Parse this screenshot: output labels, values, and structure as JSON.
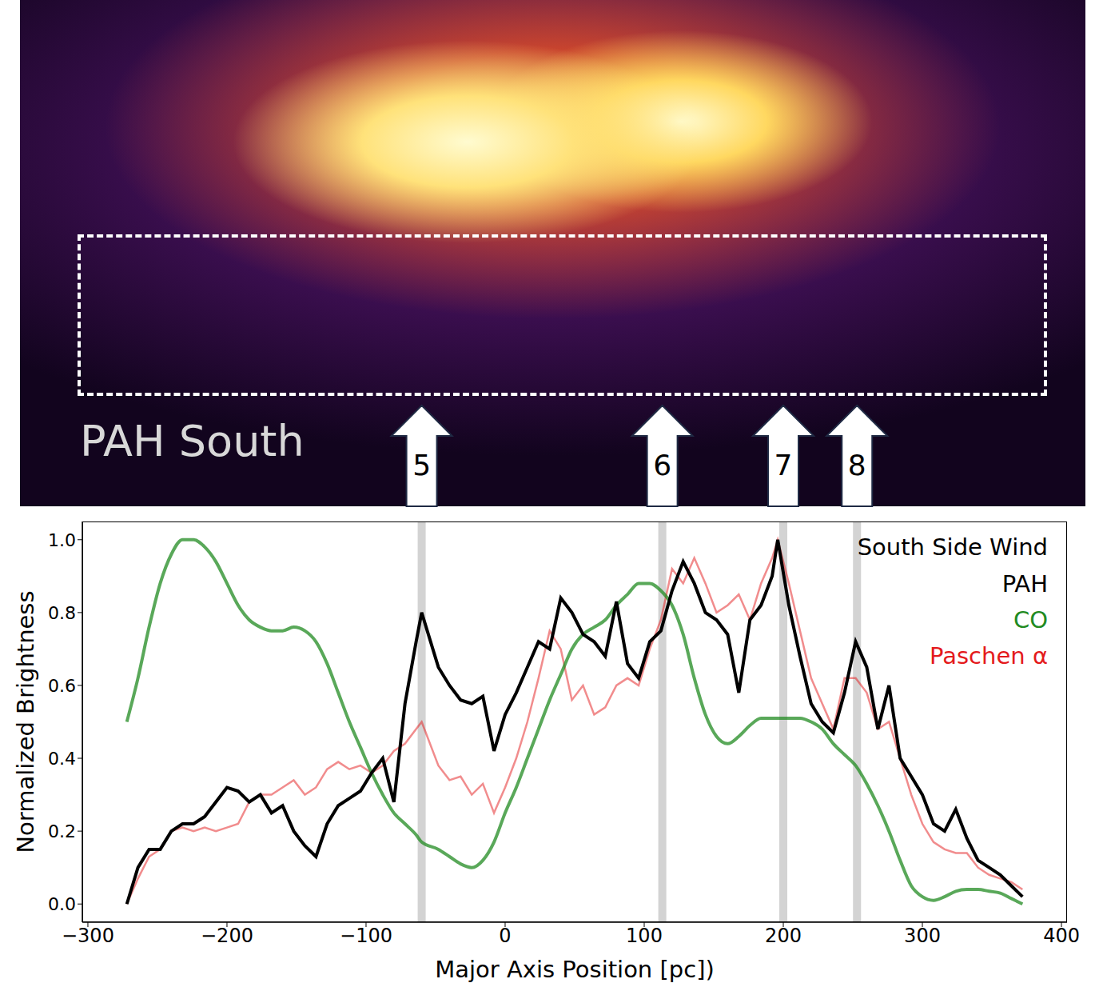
{
  "image": {
    "label": "PAH South"
  },
  "chart_data": {
    "type": "line",
    "legend_title": "South Side Wind",
    "x_label": "Major Axis Position [pc])",
    "y_label": "Normalized Brightness",
    "legend": "upper right",
    "grid": false,
    "markers": [
      {
        "label": "5",
        "x": -60
      },
      {
        "label": "6",
        "x": 113
      },
      {
        "label": "7",
        "x": 200
      },
      {
        "label": "8",
        "x": 253
      }
    ],
    "xlim": [
      -304,
      404
    ],
    "ylim": [
      -0.05,
      1.05
    ],
    "xticks": [
      {
        "value": -300,
        "label": "−300"
      },
      {
        "value": -200,
        "label": "−200"
      },
      {
        "value": -100,
        "label": "−100"
      },
      0,
      100,
      200,
      300,
      400
    ],
    "yticks": [
      {
        "value": 0,
        "label": "0.0"
      },
      0.2,
      0.4,
      0.6,
      0.8,
      {
        "value": 1,
        "label": "1.0"
      }
    ],
    "x": [
      -272,
      -264,
      -256,
      -248,
      -240,
      -232,
      -224,
      -216,
      -208,
      -200,
      -192,
      -184,
      -176,
      -168,
      -160,
      -152,
      -144,
      -136,
      -128,
      -120,
      -112,
      -104,
      -96,
      -88,
      -80,
      -72,
      -64,
      -60,
      -48,
      -40,
      -32,
      -24,
      -16,
      -8,
      0,
      8,
      16,
      24,
      32,
      40,
      48,
      56,
      64,
      72,
      80,
      88,
      96,
      104,
      112,
      120,
      128,
      136,
      144,
      152,
      160,
      168,
      176,
      184,
      192,
      196,
      204,
      212,
      220,
      228,
      236,
      244,
      252,
      260,
      268,
      276,
      284,
      292,
      300,
      308,
      316,
      324,
      332,
      340,
      348,
      356,
      364,
      372
    ],
    "series": [
      {
        "name": "PAH",
        "color": "#000000",
        "values": [
          0.0,
          0.1,
          0.15,
          0.15,
          0.2,
          0.22,
          0.22,
          0.24,
          0.28,
          0.32,
          0.31,
          0.28,
          0.3,
          0.25,
          0.27,
          0.2,
          0.16,
          0.13,
          0.22,
          0.27,
          0.29,
          0.31,
          0.36,
          0.4,
          0.28,
          0.55,
          0.72,
          0.8,
          0.65,
          0.6,
          0.56,
          0.55,
          0.57,
          0.42,
          0.52,
          0.58,
          0.65,
          0.72,
          0.7,
          0.84,
          0.8,
          0.74,
          0.72,
          0.68,
          0.83,
          0.66,
          0.62,
          0.72,
          0.75,
          0.86,
          0.94,
          0.88,
          0.8,
          0.78,
          0.74,
          0.58,
          0.78,
          0.82,
          0.9,
          1.0,
          0.82,
          0.68,
          0.55,
          0.5,
          0.47,
          0.58,
          0.72,
          0.65,
          0.48,
          0.6,
          0.4,
          0.35,
          0.3,
          0.22,
          0.2,
          0.26,
          0.18,
          0.12,
          0.1,
          0.08,
          0.05,
          0.02
        ]
      },
      {
        "name": "CO",
        "color": "#228b22",
        "values": [
          0.5,
          0.62,
          0.76,
          0.88,
          0.96,
          1.0,
          1.0,
          0.98,
          0.94,
          0.88,
          0.82,
          0.78,
          0.76,
          0.75,
          0.75,
          0.76,
          0.75,
          0.72,
          0.66,
          0.58,
          0.5,
          0.43,
          0.36,
          0.3,
          0.25,
          0.22,
          0.19,
          0.17,
          0.15,
          0.13,
          0.11,
          0.1,
          0.12,
          0.17,
          0.25,
          0.32,
          0.4,
          0.48,
          0.56,
          0.63,
          0.7,
          0.74,
          0.76,
          0.78,
          0.82,
          0.85,
          0.88,
          0.88,
          0.86,
          0.82,
          0.74,
          0.62,
          0.52,
          0.46,
          0.44,
          0.46,
          0.49,
          0.51,
          0.51,
          0.51,
          0.51,
          0.51,
          0.5,
          0.48,
          0.44,
          0.41,
          0.38,
          0.33,
          0.27,
          0.2,
          0.12,
          0.05,
          0.02,
          0.01,
          0.02,
          0.035,
          0.04,
          0.04,
          0.035,
          0.03,
          0.015,
          0.0
        ]
      },
      {
        "name": "Paschen α",
        "color": "#e41a1c",
        "values": [
          0.0,
          0.07,
          0.13,
          0.15,
          0.2,
          0.21,
          0.2,
          0.21,
          0.2,
          0.21,
          0.22,
          0.28,
          0.3,
          0.3,
          0.32,
          0.34,
          0.3,
          0.32,
          0.37,
          0.39,
          0.37,
          0.38,
          0.36,
          0.38,
          0.42,
          0.44,
          0.48,
          0.5,
          0.38,
          0.34,
          0.35,
          0.3,
          0.33,
          0.25,
          0.32,
          0.4,
          0.5,
          0.62,
          0.75,
          0.7,
          0.56,
          0.6,
          0.52,
          0.54,
          0.6,
          0.62,
          0.6,
          0.7,
          0.78,
          0.92,
          0.88,
          0.95,
          0.88,
          0.8,
          0.82,
          0.85,
          0.78,
          0.88,
          0.95,
          1.0,
          0.88,
          0.75,
          0.62,
          0.55,
          0.48,
          0.62,
          0.62,
          0.58,
          0.48,
          0.5,
          0.4,
          0.3,
          0.22,
          0.17,
          0.15,
          0.14,
          0.14,
          0.1,
          0.08,
          0.07,
          0.06,
          0.04
        ]
      }
    ]
  }
}
